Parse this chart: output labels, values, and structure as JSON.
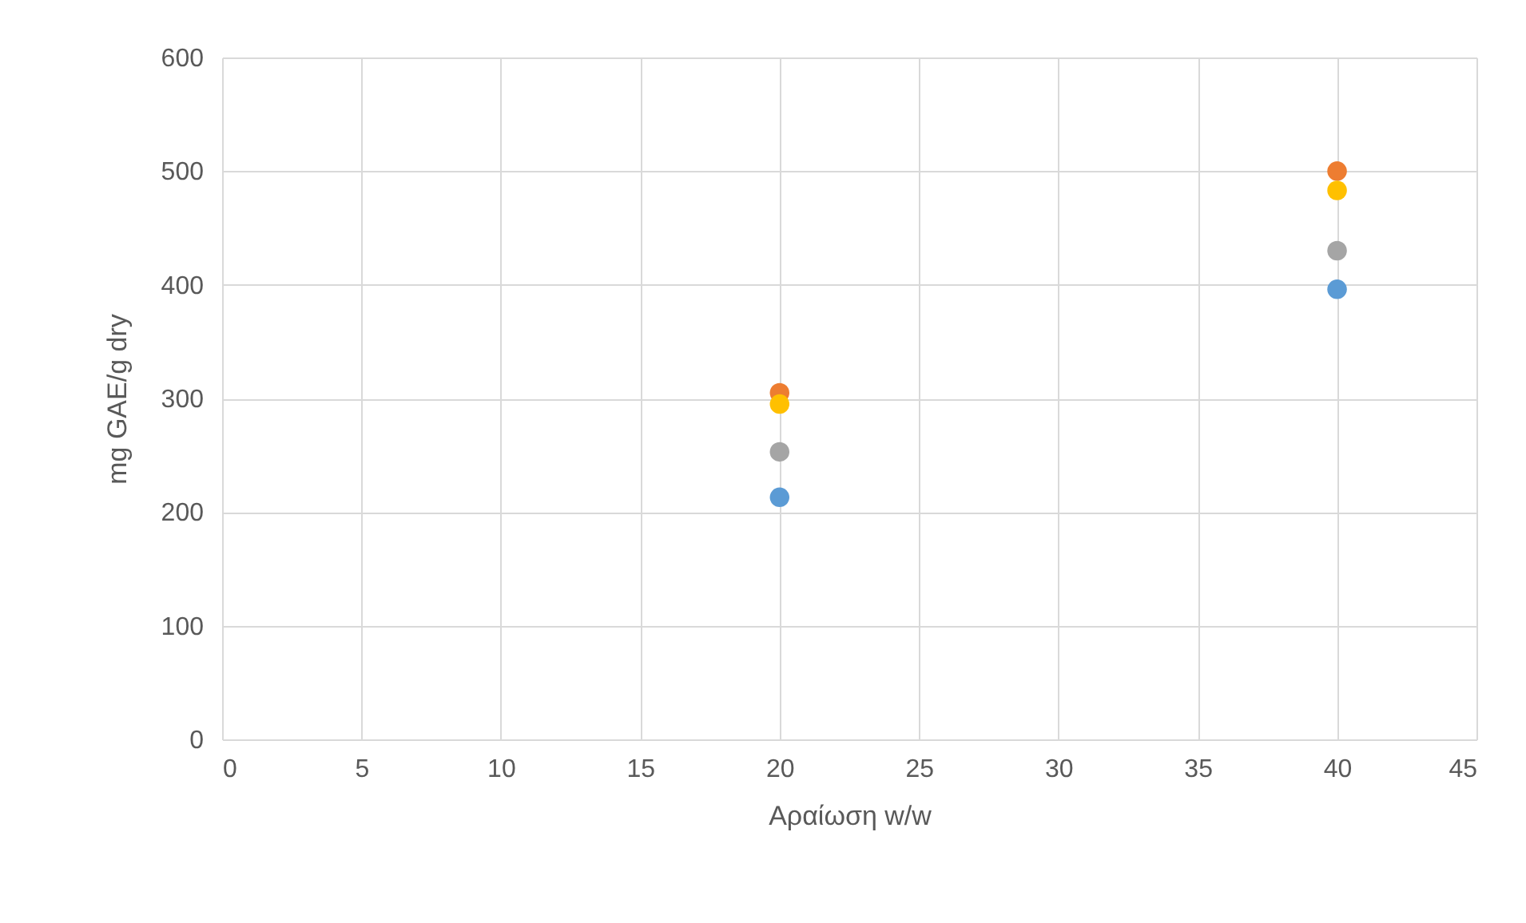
{
  "chart_data": {
    "type": "scatter",
    "xlabel": "Αραίωση w/w",
    "ylabel": "mg GAE/g dry",
    "x": [
      20,
      40
    ],
    "series": [
      {
        "color": "#5b9bd5",
        "values": [
          213,
          396
        ]
      },
      {
        "color": "#ed7d31",
        "values": [
          305,
          500
        ]
      },
      {
        "color": "#a5a5a5",
        "values": [
          253,
          430
        ]
      },
      {
        "color": "#ffc000",
        "values": [
          295,
          483
        ]
      }
    ],
    "xlim": [
      0,
      45
    ],
    "xticks": [
      0,
      5,
      10,
      15,
      20,
      25,
      30,
      35,
      40,
      45
    ],
    "ylim": [
      0,
      600
    ],
    "yticks": [
      0,
      100,
      200,
      300,
      400,
      500,
      600
    ],
    "grid": true,
    "marker": "circle"
  }
}
